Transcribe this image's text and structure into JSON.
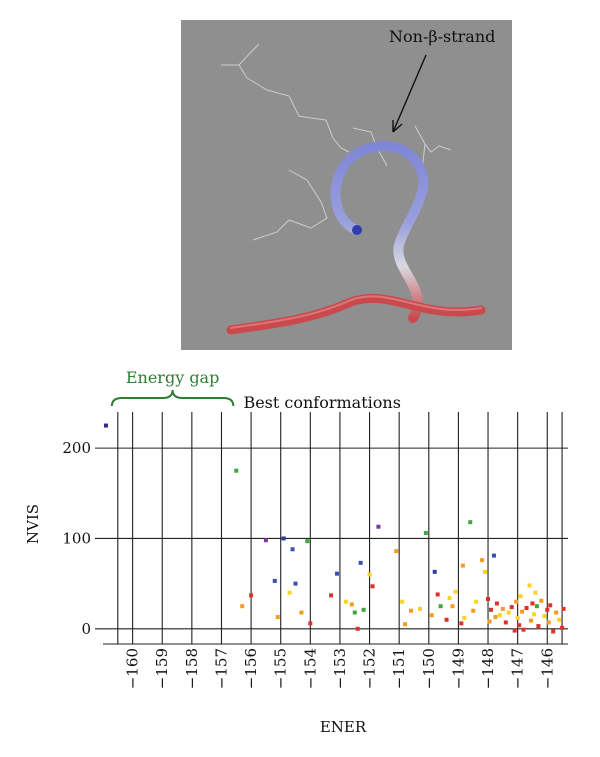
{
  "figure": {
    "structure_annotation": "Non-β-strand",
    "colors": {
      "panel_bg": "#8f8f8f",
      "strand_blue": "#7f86d6",
      "strand_red": "#c9494d",
      "wire": "#d8d8d8",
      "gap_label": "#2e7d32"
    }
  },
  "chart_data": {
    "type": "scatter",
    "xlabel": "ENER",
    "ylabel": "NVIS",
    "x_tick_labels": [
      "−160",
      "−159",
      "−158",
      "−157",
      "−156",
      "−155",
      "−154",
      "−153",
      "−152",
      "−151",
      "−150",
      "−149",
      "−148",
      "−147",
      "−146"
    ],
    "x_ticks": [
      -160,
      -159,
      -158,
      -157,
      -156,
      -155,
      -154,
      -153,
      -152,
      -151,
      -150,
      -149,
      -148,
      -147,
      -146
    ],
    "y_tick_labels": [
      "0",
      "100",
      "200"
    ],
    "y_ticks": [
      0,
      100,
      200
    ],
    "xlim": [
      -161.0,
      -145.3
    ],
    "ylim": [
      -8,
      240
    ],
    "grid": "vertical lines at each tick; horizontal lines at 0, 100, 200",
    "annotations": [
      {
        "text": "Energy gap",
        "x_from": -160.7,
        "x_to": -156.6,
        "color": "#2e7d32"
      },
      {
        "text": "Best conformations",
        "x": -153.6
      }
    ],
    "points": [
      {
        "x": -160.9,
        "y": 225,
        "c": "#2c2c8c"
      },
      {
        "x": -156.5,
        "y": 175,
        "c": "#3aa83a"
      },
      {
        "x": -156.3,
        "y": 25,
        "c": "#f39c22"
      },
      {
        "x": -156.0,
        "y": 37,
        "c": "#e03028"
      },
      {
        "x": -155.5,
        "y": 98,
        "c": "#7a3aa0"
      },
      {
        "x": -155.2,
        "y": 53,
        "c": "#3b4fb0"
      },
      {
        "x": -155.1,
        "y": 13,
        "c": "#f39c22"
      },
      {
        "x": -154.9,
        "y": 100,
        "c": "#2c3f9c"
      },
      {
        "x": -154.6,
        "y": 88,
        "c": "#3b4fb0"
      },
      {
        "x": -154.7,
        "y": 40,
        "c": "#ffd21f"
      },
      {
        "x": -154.5,
        "y": 50,
        "c": "#3b4fb0"
      },
      {
        "x": -154.3,
        "y": 18,
        "c": "#f39c22"
      },
      {
        "x": -154.1,
        "y": 97,
        "c": "#3aa83a"
      },
      {
        "x": -154.0,
        "y": 6,
        "c": "#e03028"
      },
      {
        "x": -153.3,
        "y": 37,
        "c": "#e03028"
      },
      {
        "x": -153.1,
        "y": 61,
        "c": "#3b4fb0"
      },
      {
        "x": -152.8,
        "y": 30,
        "c": "#ffd21f"
      },
      {
        "x": -152.6,
        "y": 27,
        "c": "#f39c22"
      },
      {
        "x": -152.5,
        "y": 18,
        "c": "#3aa83a"
      },
      {
        "x": -152.4,
        "y": 0,
        "c": "#e03028"
      },
      {
        "x": -152.3,
        "y": 73,
        "c": "#3b4fb0"
      },
      {
        "x": -152.2,
        "y": 21,
        "c": "#3aa83a"
      },
      {
        "x": -152.0,
        "y": 60,
        "c": "#ffd21f"
      },
      {
        "x": -151.9,
        "y": 47,
        "c": "#e03028"
      },
      {
        "x": -151.7,
        "y": 113,
        "c": "#7a3aa0"
      },
      {
        "x": -151.1,
        "y": 86,
        "c": "#f39c22"
      },
      {
        "x": -150.9,
        "y": 30,
        "c": "#ffd21f"
      },
      {
        "x": -150.8,
        "y": 5,
        "c": "#f39c22"
      },
      {
        "x": -150.6,
        "y": 20,
        "c": "#f39c22"
      },
      {
        "x": -150.3,
        "y": 22,
        "c": "#ffd21f"
      },
      {
        "x": -150.1,
        "y": 106,
        "c": "#3aa83a"
      },
      {
        "x": -149.9,
        "y": 15,
        "c": "#f39c22"
      },
      {
        "x": -149.8,
        "y": 63,
        "c": "#2c3f9c"
      },
      {
        "x": -149.7,
        "y": 38,
        "c": "#e03028"
      },
      {
        "x": -149.6,
        "y": 25,
        "c": "#3aa83a"
      },
      {
        "x": -149.4,
        "y": 10,
        "c": "#e03028"
      },
      {
        "x": -149.3,
        "y": 34,
        "c": "#ffd21f"
      },
      {
        "x": -149.2,
        "y": 25,
        "c": "#f39c22"
      },
      {
        "x": -149.1,
        "y": 41,
        "c": "#ffd21f"
      },
      {
        "x": -148.9,
        "y": 6,
        "c": "#e03028"
      },
      {
        "x": -148.85,
        "y": 70,
        "c": "#f39c22"
      },
      {
        "x": -148.8,
        "y": 12,
        "c": "#ffd21f"
      },
      {
        "x": -148.6,
        "y": 118,
        "c": "#3aa83a"
      },
      {
        "x": -148.5,
        "y": 20,
        "c": "#f39c22"
      },
      {
        "x": -148.4,
        "y": 30,
        "c": "#ffd21f"
      },
      {
        "x": -148.2,
        "y": 76,
        "c": "#f39c22"
      },
      {
        "x": -148.1,
        "y": 63,
        "c": "#ffd21f"
      },
      {
        "x": -148.0,
        "y": 33,
        "c": "#e03028"
      },
      {
        "x": -147.95,
        "y": 8,
        "c": "#f39c22"
      },
      {
        "x": -147.9,
        "y": 21,
        "c": "#e03028"
      },
      {
        "x": -147.8,
        "y": 81,
        "c": "#3b4fb0"
      },
      {
        "x": -147.75,
        "y": 13,
        "c": "#f39c22"
      },
      {
        "x": -147.7,
        "y": 28,
        "c": "#e03028"
      },
      {
        "x": -147.6,
        "y": 15,
        "c": "#ffd21f"
      },
      {
        "x": -147.5,
        "y": 22,
        "c": "#f39c22"
      },
      {
        "x": -147.4,
        "y": 7,
        "c": "#e03028"
      },
      {
        "x": -147.3,
        "y": 18,
        "c": "#ffd21f"
      },
      {
        "x": -147.2,
        "y": 24,
        "c": "#e03028"
      },
      {
        "x": -147.1,
        "y": -2,
        "c": "#e03028"
      },
      {
        "x": -147.05,
        "y": 30,
        "c": "#f39c22"
      },
      {
        "x": -147.0,
        "y": 12,
        "c": "#ffd21f"
      },
      {
        "x": -146.95,
        "y": 4,
        "c": "#e03028"
      },
      {
        "x": -146.9,
        "y": 36,
        "c": "#ffd21f"
      },
      {
        "x": -146.85,
        "y": 19,
        "c": "#f39c22"
      },
      {
        "x": -146.8,
        "y": -1,
        "c": "#e03028"
      },
      {
        "x": -146.7,
        "y": 23,
        "c": "#e03028"
      },
      {
        "x": -146.6,
        "y": 48,
        "c": "#ffd21f"
      },
      {
        "x": -146.55,
        "y": 9,
        "c": "#f39c22"
      },
      {
        "x": -146.5,
        "y": 28,
        "c": "#e03028"
      },
      {
        "x": -146.45,
        "y": 16,
        "c": "#ffd21f"
      },
      {
        "x": -146.4,
        "y": 40,
        "c": "#ffd21f"
      },
      {
        "x": -146.35,
        "y": 25,
        "c": "#3aa83a"
      },
      {
        "x": -146.3,
        "y": 3,
        "c": "#e03028"
      },
      {
        "x": -146.2,
        "y": 31,
        "c": "#f39c22"
      },
      {
        "x": -146.1,
        "y": 14,
        "c": "#ffd21f"
      },
      {
        "x": -146.0,
        "y": 21,
        "c": "#e03028"
      },
      {
        "x": -145.95,
        "y": 7,
        "c": "#f39c22"
      },
      {
        "x": -145.9,
        "y": 26,
        "c": "#e03028"
      },
      {
        "x": -145.8,
        "y": -3,
        "c": "#e03028"
      },
      {
        "x": -145.7,
        "y": 18,
        "c": "#f39c22"
      },
      {
        "x": -145.6,
        "y": 10,
        "c": "#ffd21f"
      },
      {
        "x": -145.5,
        "y": 1,
        "c": "#e03028"
      },
      {
        "x": -145.45,
        "y": 22,
        "c": "#e03028"
      }
    ]
  }
}
